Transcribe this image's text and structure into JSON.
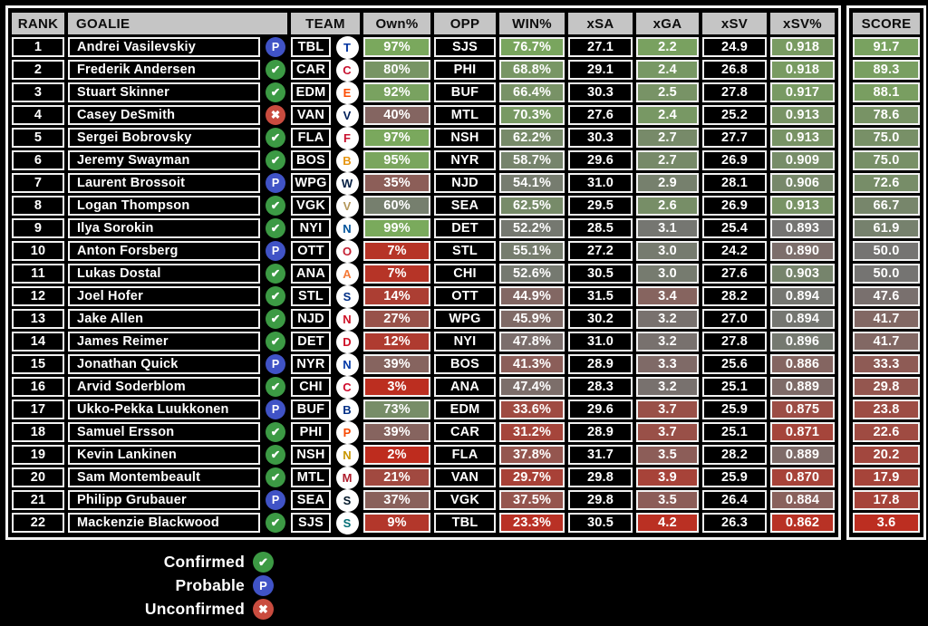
{
  "chart_data": {
    "type": "table",
    "columns": [
      "RANK",
      "GOALIE",
      "TEAM",
      "Own%",
      "OPP",
      "WIN%",
      "xSA",
      "xGA",
      "xSV",
      "xSV%",
      "SCORE"
    ],
    "rows": [
      {
        "rank": "1",
        "name": "Andrei Vasilevskiy",
        "status": "probable",
        "team": "TBL",
        "own": "97%",
        "opp": "SJS",
        "win": "76.7%",
        "xsa": "27.1",
        "xga": "2.2",
        "xsv": "24.9",
        "xsv_pct": "0.918",
        "score": "91.7"
      },
      {
        "rank": "2",
        "name": "Frederik Andersen",
        "status": "confirmed",
        "team": "CAR",
        "own": "80%",
        "opp": "PHI",
        "win": "68.8%",
        "xsa": "29.1",
        "xga": "2.4",
        "xsv": "26.8",
        "xsv_pct": "0.918",
        "score": "89.3"
      },
      {
        "rank": "3",
        "name": "Stuart Skinner",
        "status": "confirmed",
        "team": "EDM",
        "own": "92%",
        "opp": "BUF",
        "win": "66.4%",
        "xsa": "30.3",
        "xga": "2.5",
        "xsv": "27.8",
        "xsv_pct": "0.917",
        "score": "88.1"
      },
      {
        "rank": "4",
        "name": "Casey DeSmith",
        "status": "unconfirmed",
        "team": "VAN",
        "own": "40%",
        "opp": "MTL",
        "win": "70.3%",
        "xsa": "27.6",
        "xga": "2.4",
        "xsv": "25.2",
        "xsv_pct": "0.913",
        "score": "78.6"
      },
      {
        "rank": "5",
        "name": "Sergei Bobrovsky",
        "status": "confirmed",
        "team": "FLA",
        "own": "97%",
        "opp": "NSH",
        "win": "62.2%",
        "xsa": "30.3",
        "xga": "2.7",
        "xsv": "27.7",
        "xsv_pct": "0.913",
        "score": "75.0"
      },
      {
        "rank": "6",
        "name": "Jeremy Swayman",
        "status": "confirmed",
        "team": "BOS",
        "own": "95%",
        "opp": "NYR",
        "win": "58.7%",
        "xsa": "29.6",
        "xga": "2.7",
        "xsv": "26.9",
        "xsv_pct": "0.909",
        "score": "75.0"
      },
      {
        "rank": "7",
        "name": "Laurent Brossoit",
        "status": "probable",
        "team": "WPG",
        "own": "35%",
        "opp": "NJD",
        "win": "54.1%",
        "xsa": "31.0",
        "xga": "2.9",
        "xsv": "28.1",
        "xsv_pct": "0.906",
        "score": "72.6"
      },
      {
        "rank": "8",
        "name": "Logan Thompson",
        "status": "confirmed",
        "team": "VGK",
        "own": "60%",
        "opp": "SEA",
        "win": "62.5%",
        "xsa": "29.5",
        "xga": "2.6",
        "xsv": "26.9",
        "xsv_pct": "0.913",
        "score": "66.7"
      },
      {
        "rank": "9",
        "name": "Ilya Sorokin",
        "status": "confirmed",
        "team": "NYI",
        "own": "99%",
        "opp": "DET",
        "win": "52.2%",
        "xsa": "28.5",
        "xga": "3.1",
        "xsv": "25.4",
        "xsv_pct": "0.893",
        "score": "61.9"
      },
      {
        "rank": "10",
        "name": "Anton Forsberg",
        "status": "probable",
        "team": "OTT",
        "own": "7%",
        "opp": "STL",
        "win": "55.1%",
        "xsa": "27.2",
        "xga": "3.0",
        "xsv": "24.2",
        "xsv_pct": "0.890",
        "score": "50.0"
      },
      {
        "rank": "11",
        "name": "Lukas Dostal",
        "status": "confirmed",
        "team": "ANA",
        "own": "7%",
        "opp": "CHI",
        "win": "52.6%",
        "xsa": "30.5",
        "xga": "3.0",
        "xsv": "27.6",
        "xsv_pct": "0.903",
        "score": "50.0"
      },
      {
        "rank": "12",
        "name": "Joel Hofer",
        "status": "confirmed",
        "team": "STL",
        "own": "14%",
        "opp": "OTT",
        "win": "44.9%",
        "xsa": "31.5",
        "xga": "3.4",
        "xsv": "28.2",
        "xsv_pct": "0.894",
        "score": "47.6"
      },
      {
        "rank": "13",
        "name": "Jake Allen",
        "status": "confirmed",
        "team": "NJD",
        "own": "27%",
        "opp": "WPG",
        "win": "45.9%",
        "xsa": "30.2",
        "xga": "3.2",
        "xsv": "27.0",
        "xsv_pct": "0.894",
        "score": "41.7"
      },
      {
        "rank": "14",
        "name": "James Reimer",
        "status": "confirmed",
        "team": "DET",
        "own": "12%",
        "opp": "NYI",
        "win": "47.8%",
        "xsa": "31.0",
        "xga": "3.2",
        "xsv": "27.8",
        "xsv_pct": "0.896",
        "score": "41.7"
      },
      {
        "rank": "15",
        "name": "Jonathan Quick",
        "status": "probable",
        "team": "NYR",
        "own": "39%",
        "opp": "BOS",
        "win": "41.3%",
        "xsa": "28.9",
        "xga": "3.3",
        "xsv": "25.6",
        "xsv_pct": "0.886",
        "score": "33.3"
      },
      {
        "rank": "16",
        "name": "Arvid Soderblom",
        "status": "confirmed",
        "team": "CHI",
        "own": "3%",
        "opp": "ANA",
        "win": "47.4%",
        "xsa": "28.3",
        "xga": "3.2",
        "xsv": "25.1",
        "xsv_pct": "0.889",
        "score": "29.8"
      },
      {
        "rank": "17",
        "name": "Ukko-Pekka Luukkonen",
        "status": "probable",
        "team": "BUF",
        "own": "73%",
        "opp": "EDM",
        "win": "33.6%",
        "xsa": "29.6",
        "xga": "3.7",
        "xsv": "25.9",
        "xsv_pct": "0.875",
        "score": "23.8"
      },
      {
        "rank": "18",
        "name": "Samuel Ersson",
        "status": "confirmed",
        "team": "PHI",
        "own": "39%",
        "opp": "CAR",
        "win": "31.2%",
        "xsa": "28.9",
        "xga": "3.7",
        "xsv": "25.1",
        "xsv_pct": "0.871",
        "score": "22.6"
      },
      {
        "rank": "19",
        "name": "Kevin Lankinen",
        "status": "confirmed",
        "team": "NSH",
        "own": "2%",
        "opp": "FLA",
        "win": "37.8%",
        "xsa": "31.7",
        "xga": "3.5",
        "xsv": "28.2",
        "xsv_pct": "0.889",
        "score": "20.2"
      },
      {
        "rank": "20",
        "name": "Sam Montembeault",
        "status": "confirmed",
        "team": "MTL",
        "own": "21%",
        "opp": "VAN",
        "win": "29.7%",
        "xsa": "29.8",
        "xga": "3.9",
        "xsv": "25.9",
        "xsv_pct": "0.870",
        "score": "17.9"
      },
      {
        "rank": "21",
        "name": "Philipp Grubauer",
        "status": "probable",
        "team": "SEA",
        "own": "37%",
        "opp": "VGK",
        "win": "37.5%",
        "xsa": "29.8",
        "xga": "3.5",
        "xsv": "26.4",
        "xsv_pct": "0.884",
        "score": "17.8"
      },
      {
        "rank": "22",
        "name": "Mackenzie Blackwood",
        "status": "confirmed",
        "team": "SJS",
        "own": "9%",
        "opp": "TBL",
        "win": "23.3%",
        "xsa": "30.5",
        "xga": "4.2",
        "xsv": "26.3",
        "xsv_pct": "0.862",
        "score": "3.6"
      }
    ]
  },
  "legend": {
    "items": [
      {
        "label": "Confirmed",
        "status": "confirmed"
      },
      {
        "label": "Probable",
        "status": "probable"
      },
      {
        "label": "Unconfirmed",
        "status": "unconfirmed"
      }
    ]
  },
  "status": {
    "colors": {
      "confirmed": "#3c9a44",
      "probable": "#4053c6",
      "unconfirmed": "#c94c3f"
    },
    "glyphs": {
      "confirmed": "✔",
      "probable": "P",
      "unconfirmed": "✖"
    }
  },
  "colors": {
    "page_bg": "#000000",
    "header_bg": "#c5c5c5",
    "header_text": "#0d0d0d",
    "cell_bg": "#000000",
    "cell_text": "#ffffff",
    "border": "#f2f2f2",
    "scale_low": "#c1291b",
    "scale_mid": "#757472",
    "scale_high": "#7aab5c"
  },
  "scales": {
    "own": {
      "min": 0,
      "max": 100,
      "invert": false
    },
    "win": {
      "min": 20,
      "max": 80,
      "invert": false
    },
    "xga": {
      "min": 2.0,
      "max": 4.3,
      "invert": true
    },
    "xsv_pct": {
      "min": 0.858,
      "max": 0.928,
      "invert": false
    },
    "score": {
      "min": 0,
      "max": 100,
      "invert": false
    }
  },
  "teams": {
    "TBL": "#0033a0",
    "CAR": "#c8102e",
    "EDM": "#fc4c02",
    "VAN": "#00205b",
    "FLA": "#c8102e",
    "BOS": "#e69510",
    "WPG": "#041e42",
    "VGK": "#b4975a",
    "NYI": "#00539b",
    "OTT": "#c52032",
    "ANA": "#f47a38",
    "STL": "#002f87",
    "NJD": "#ce1126",
    "DET": "#ce1126",
    "NYR": "#0038a8",
    "CHI": "#cf0a2c",
    "BUF": "#003087",
    "PHI": "#f74902",
    "NSH": "#c99700",
    "MTL": "#af1e2d",
    "SEA": "#001628",
    "SJS": "#006d75"
  }
}
